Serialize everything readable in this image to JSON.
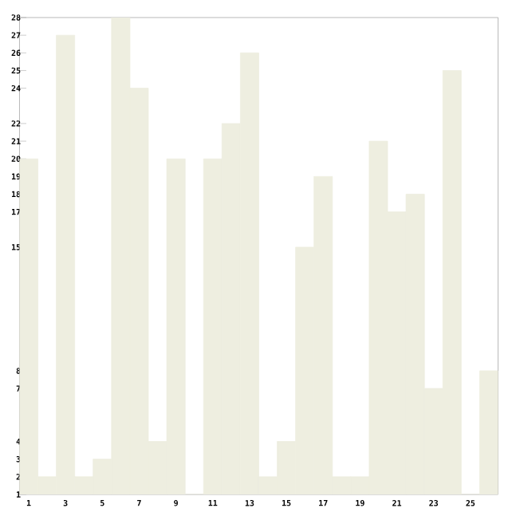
{
  "chart_data": {
    "type": "bar",
    "categories": [
      "1",
      null,
      "3",
      null,
      "5",
      null,
      "7",
      null,
      "9",
      null,
      "11",
      null,
      "13",
      null,
      "15",
      null,
      "17",
      null,
      "19",
      null,
      "21",
      null,
      "23",
      null,
      "25",
      null
    ],
    "values": [
      20,
      2,
      27,
      2,
      3,
      28,
      24,
      4,
      20,
      1,
      20,
      22,
      26,
      2,
      4,
      15,
      19,
      2,
      2,
      21,
      17,
      18,
      7,
      25,
      1,
      8
    ],
    "color": "#eeeee0",
    "ylim": [
      1,
      28
    ],
    "yticks": [
      1,
      2,
      3,
      4,
      7,
      8,
      15,
      17,
      18,
      19,
      20,
      21,
      22,
      24,
      25,
      26,
      27,
      28
    ]
  }
}
